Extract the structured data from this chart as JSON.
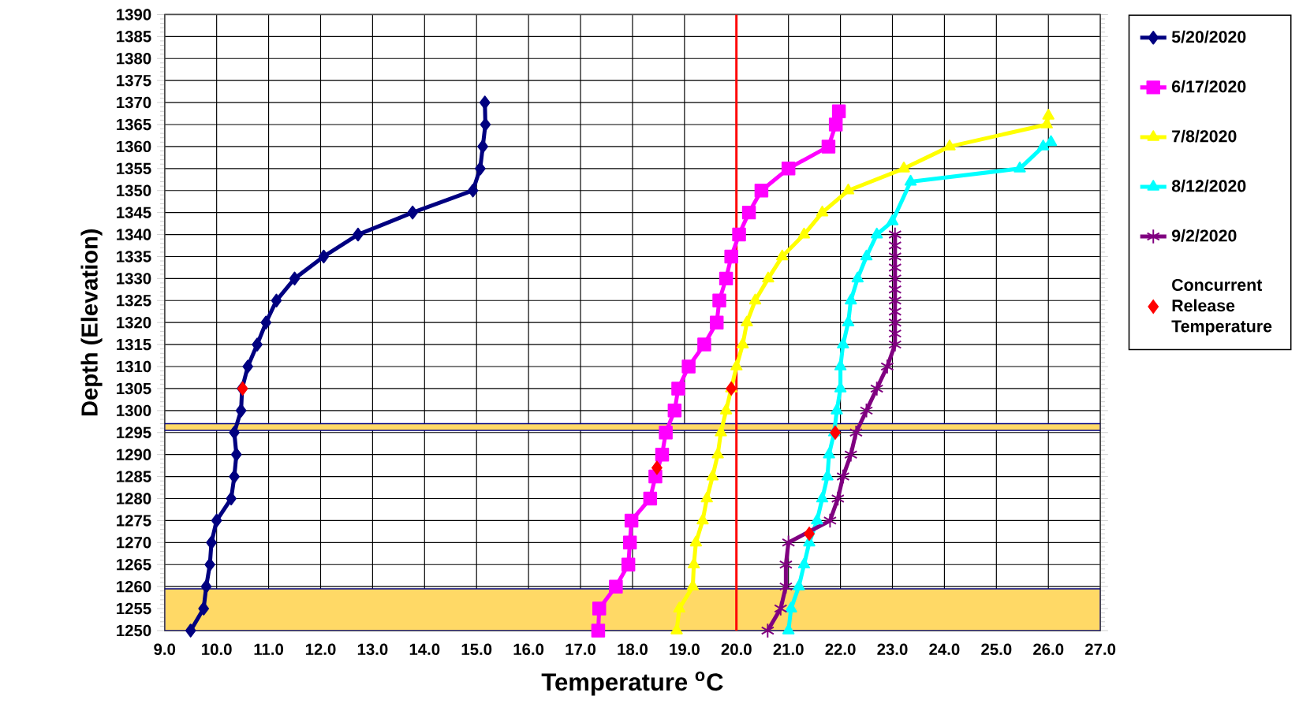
{
  "chart_data": {
    "type": "line",
    "xlabel": "Temperature $^{o}$C",
    "ylabel": "Depth (Elevation)",
    "xlim": [
      9,
      27
    ],
    "ylim": [
      1250,
      1390
    ],
    "xticks": [
      {
        "value": 9,
        "label": "9.0"
      },
      {
        "value": 10,
        "label": "10.0"
      },
      {
        "value": 11,
        "label": "11.0"
      },
      {
        "value": 12,
        "label": "12.0"
      },
      {
        "value": 13,
        "label": "13.0"
      },
      {
        "value": 14,
        "label": "14.0"
      },
      {
        "value": 15,
        "label": "15.0"
      },
      {
        "value": 16,
        "label": "16.0"
      },
      {
        "value": 17,
        "label": "17.0"
      },
      {
        "value": 18,
        "label": "18.0"
      },
      {
        "value": 19,
        "label": "19.0"
      },
      {
        "value": 20,
        "label": "20.0"
      },
      {
        "value": 21,
        "label": "21.0"
      },
      {
        "value": 22,
        "label": "22.0"
      },
      {
        "value": 23,
        "label": "23.0"
      },
      {
        "value": 24,
        "label": "24.0"
      },
      {
        "value": 25,
        "label": "25.0"
      },
      {
        "value": 26,
        "label": "26.0"
      },
      {
        "value": 27,
        "label": "27.0"
      }
    ],
    "yticks": [
      1250,
      1255,
      1260,
      1265,
      1270,
      1275,
      1280,
      1285,
      1290,
      1295,
      1300,
      1305,
      1310,
      1315,
      1320,
      1325,
      1330,
      1335,
      1340,
      1345,
      1350,
      1355,
      1360,
      1365,
      1370,
      1375,
      1380,
      1385,
      1390
    ],
    "grid": true,
    "legend": "right",
    "series": [
      {
        "name": "5/20/2020",
        "color": "#000080",
        "marker": "diamond",
        "x": [
          9.5,
          9.75,
          9.8,
          9.87,
          9.9,
          10.0,
          10.28,
          10.34,
          10.38,
          10.34,
          10.47,
          10.49,
          10.6,
          10.78,
          10.95,
          11.15,
          11.5,
          12.06,
          12.72,
          13.77,
          14.93,
          15.07,
          15.12,
          15.17,
          15.16
        ],
        "values": [
          1250,
          1255,
          1260,
          1265,
          1270,
          1275,
          1280,
          1285,
          1290,
          1295,
          1300,
          1305,
          1310,
          1315,
          1320,
          1325,
          1330,
          1335,
          1340,
          1345,
          1350,
          1355,
          1360,
          1365,
          1370
        ]
      },
      {
        "name": "6/17/2020",
        "color": "#ff00ff",
        "marker": "square",
        "x": [
          17.34,
          17.36,
          17.68,
          17.92,
          17.95,
          17.98,
          18.34,
          18.44,
          18.57,
          18.64,
          18.81,
          18.88,
          19.08,
          19.38,
          19.62,
          19.67,
          19.8,
          19.9,
          20.05,
          20.24,
          20.48,
          21.0,
          21.77,
          21.91,
          21.97
        ],
        "values": [
          1250,
          1255,
          1260,
          1265,
          1270,
          1275,
          1280,
          1285,
          1290,
          1295,
          1300,
          1305,
          1310,
          1315,
          1320,
          1325,
          1330,
          1335,
          1340,
          1345,
          1350,
          1355,
          1360,
          1365,
          1368
        ]
      },
      {
        "name": "7/8/2020",
        "color": "#ffff00",
        "marker": "triangle",
        "x": [
          18.85,
          18.9,
          19.16,
          19.18,
          19.22,
          19.35,
          19.43,
          19.54,
          19.64,
          19.7,
          19.8,
          19.9,
          20.0,
          20.12,
          20.2,
          20.36,
          20.61,
          20.88,
          21.3,
          21.65,
          22.15,
          23.22,
          24.1,
          25.97,
          26.0
        ],
        "values": [
          1250,
          1255,
          1260,
          1265,
          1270,
          1275,
          1280,
          1285,
          1290,
          1295,
          1300,
          1305,
          1310,
          1315,
          1320,
          1325,
          1330,
          1335,
          1340,
          1345,
          1350,
          1355,
          1360,
          1365,
          1367
        ]
      },
      {
        "name": "8/12/2020",
        "color": "#00ffff",
        "marker": "triangle",
        "x": [
          21.0,
          21.05,
          21.2,
          21.3,
          21.4,
          21.55,
          21.65,
          21.75,
          21.78,
          21.88,
          21.93,
          22.0,
          22.0,
          22.05,
          22.15,
          22.2,
          22.33,
          22.5,
          22.7,
          23.0,
          23.35,
          25.45,
          25.9,
          26.05
        ],
        "values": [
          1250,
          1255,
          1260,
          1265,
          1270,
          1275,
          1280,
          1285,
          1290,
          1295,
          1300,
          1305,
          1310,
          1315,
          1320,
          1325,
          1330,
          1335,
          1340,
          1343,
          1352,
          1355,
          1360,
          1361
        ]
      },
      {
        "name": "9/2/2020",
        "color": "#800080",
        "marker": "cross",
        "x": [
          20.6,
          20.85,
          20.95,
          20.95,
          21.0,
          21.8,
          21.95,
          22.05,
          22.2,
          22.3,
          22.5,
          22.7,
          22.9,
          23.05,
          23.05,
          23.05,
          23.05,
          23.05,
          23.05,
          23.05,
          23.05,
          23.05,
          23.05,
          23.05
        ],
        "values": [
          1250,
          1255,
          1260,
          1265,
          1270,
          1275,
          1280,
          1285,
          1290,
          1295,
          1300,
          1305,
          1310,
          1315,
          1317.5,
          1320,
          1322.5,
          1325,
          1327.5,
          1330,
          1332.5,
          1335,
          1337.5,
          1340
        ]
      },
      {
        "name": "Concurrent Release Temperature",
        "type": "scatter",
        "color": "#ff0000",
        "marker": "diamond",
        "x": [
          10.5,
          19.9,
          21.9,
          18.47,
          21.4
        ],
        "values": [
          1305,
          1305,
          1295,
          1287,
          1272
        ]
      }
    ],
    "ref_lines": [
      {
        "axis": "x",
        "value": 20,
        "color": "#ff0000"
      }
    ],
    "bands": [
      {
        "axis": "y",
        "from": 1250,
        "to": 1259.5,
        "color": "#ffd966"
      },
      {
        "axis": "y",
        "from": 1295.5,
        "to": 1297,
        "color": "#ffd966"
      }
    ]
  }
}
